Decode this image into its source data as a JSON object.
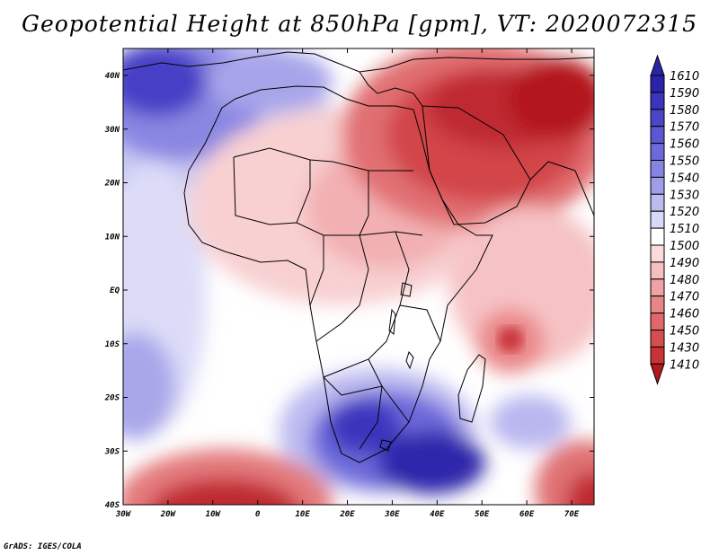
{
  "title": "Geopotential Height at 850hPa [gpm], VT: 2020072315",
  "credit": "GrADS: IGES/COLA",
  "axes": {
    "lon_labels": [
      "30W",
      "20W",
      "10W",
      "0",
      "10E",
      "20E",
      "30E",
      "40E",
      "50E",
      "60E",
      "70E"
    ],
    "lat_labels": [
      "40N",
      "30N",
      "20N",
      "10N",
      "EQ",
      "10S",
      "20S",
      "30S",
      "40S"
    ]
  },
  "colorbar": {
    "levels": [
      "1610",
      "1590",
      "1580",
      "1570",
      "1560",
      "1550",
      "1540",
      "1530",
      "1520",
      "1510",
      "1500",
      "1490",
      "1480",
      "1470",
      "1460",
      "1450",
      "1430",
      "1410"
    ],
    "colors": [
      "#2b24a8",
      "#3b34bd",
      "#4b45c8",
      "#5b57d1",
      "#6d69da",
      "#8684e2",
      "#a09ee9",
      "#bcbaf0",
      "#d8d8f7",
      "#ffffff",
      "#fadadb",
      "#f6bfc0",
      "#f0a2a4",
      "#ea8587",
      "#e0686b",
      "#d64c50",
      "#c93236",
      "#b3191e"
    ]
  },
  "palette": {
    "frame": "#000000",
    "background": "#ffffff"
  }
}
